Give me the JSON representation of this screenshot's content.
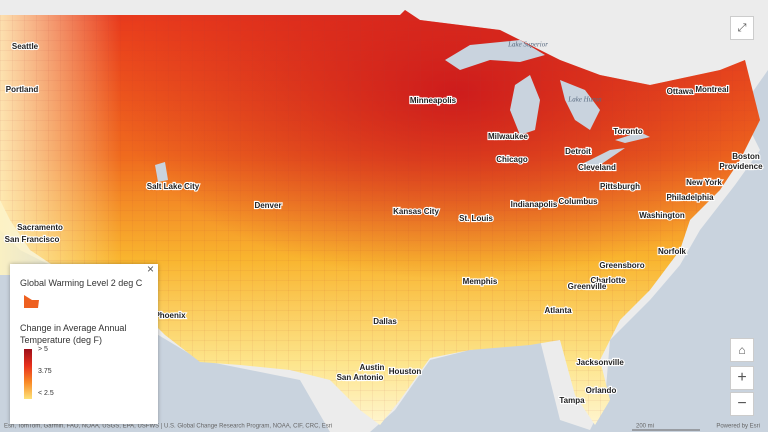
{
  "map": {
    "cities": [
      "Seattle",
      "Portland",
      "Sacramento",
      "San Francisco",
      "Salt Lake City",
      "Denver",
      "Phoenix",
      "Minneapolis",
      "Milwaukee",
      "Chicago",
      "Detroit",
      "Cleveland",
      "Toronto",
      "Ottawa",
      "Montreal",
      "Boston",
      "Providence",
      "New York",
      "Philadelphia",
      "Pittsburgh",
      "Columbus",
      "Indianapolis",
      "Kansas City",
      "St. Louis",
      "Washington",
      "Norfolk",
      "Greensboro",
      "Charlotte",
      "Greenville",
      "Memphis",
      "Atlanta",
      "Dallas",
      "Austin",
      "San Antonio",
      "Houston",
      "Jacksonville",
      "Orlando",
      "Tampa"
    ],
    "lakes": [
      "Lake Superior",
      "Lake Huron"
    ],
    "legend": {
      "title": "Global Warming Level 2 deg C",
      "subtitle": "Change in Average Annual Temperature (deg F)",
      "classes": [
        "> 5",
        "3.75",
        "< 2.5"
      ]
    },
    "attribution": "Esri, TomTom, Garmin, FAO, NOAA, USGS, EPA, USFWS | U.S. Global Change Research Program, NOAA, CIF, CRC, Esri",
    "scale": "200 mi",
    "powered_by": "Powered by Esri"
  }
}
